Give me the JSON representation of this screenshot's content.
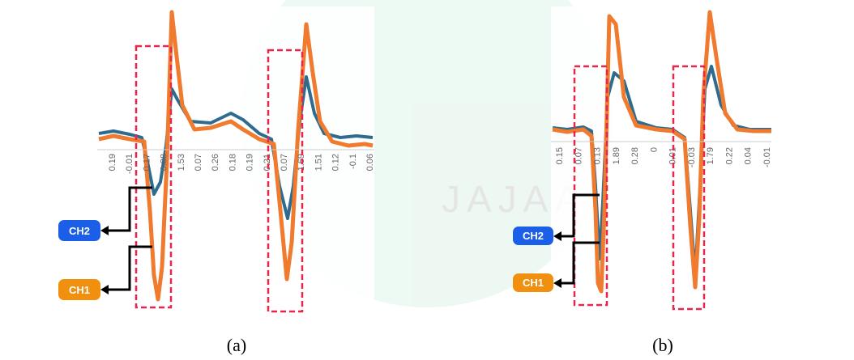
{
  "figure": {
    "watermark": "JAJAA",
    "panels": [
      {
        "caption": "(a)",
        "tick_labels": [
          "0.19",
          "-0.01",
          "0.17",
          "0.38",
          "1.53",
          "0.07",
          "0.26",
          "0.18",
          "0.19",
          "0.21",
          "0.07",
          "1.69",
          "1.51",
          "0.12",
          "-0.1",
          "0.06"
        ],
        "callouts": [
          "CH2",
          "CH1"
        ]
      },
      {
        "caption": "(b)",
        "tick_labels": [
          "0.15",
          "0.07",
          "0.13",
          "1.89",
          "0.28",
          "0",
          "-0.01",
          "-0.03",
          "1.79",
          "0.22",
          "0.04",
          "-0.01"
        ],
        "callouts": [
          "CH2",
          "CH1"
        ]
      }
    ]
  }
}
